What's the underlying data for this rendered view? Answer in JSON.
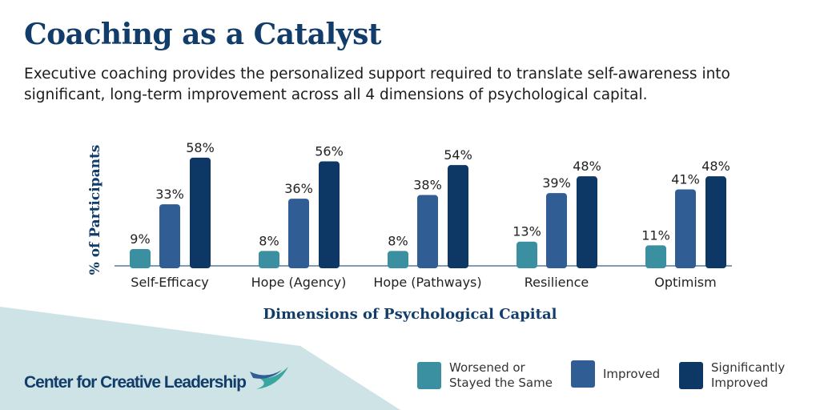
{
  "title": "Coaching as a Catalyst",
  "subtitle": "Executive coaching provides the personalized support required to translate self-awareness into significant, long-term improvement across all 4 dimensions of psychological capital.",
  "logo": "Center for Creative Leadership",
  "chart_data": {
    "type": "bar",
    "xlabel": "Dimensions of Psychological Capital",
    "ylabel": "% of Participants",
    "ylim": [
      0,
      60
    ],
    "grid": false,
    "legend_placement": "bottom-right",
    "categories": [
      "Self-Efficacy",
      "Hope (Agency)",
      "Hope (Pathways)",
      "Resilience",
      "Optimism"
    ],
    "series": [
      {
        "name": "Worsened or Stayed the Same",
        "color": "#3a8fa1",
        "values": [
          9,
          8,
          8,
          13,
          11
        ]
      },
      {
        "name": "Improved",
        "color": "#2f5d94",
        "values": [
          33,
          36,
          38,
          39,
          41
        ]
      },
      {
        "name": "Significantly Improved",
        "color": "#0d3764",
        "values": [
          58,
          56,
          54,
          48,
          48
        ]
      }
    ],
    "value_suffix": "%"
  }
}
